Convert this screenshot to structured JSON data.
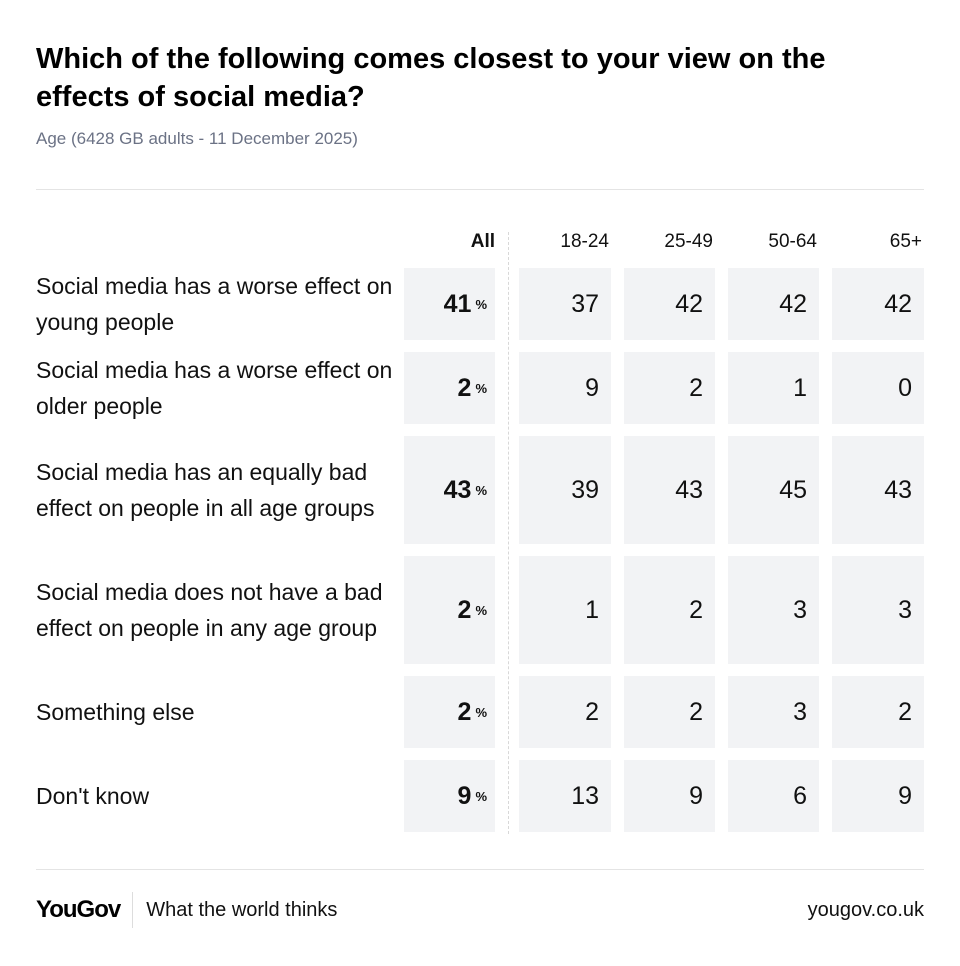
{
  "chart_data": {
    "type": "table",
    "title": "Which of the following comes closest to your view on the effects of social media?",
    "subtitle": "Age (6428 GB adults - 11 December 2025)",
    "columns": [
      "All",
      "18-24",
      "25-49",
      "50-64",
      "65+"
    ],
    "pct_symbol": "%",
    "rows": [
      {
        "label": "Social media has a worse effect on young people",
        "values": [
          41,
          37,
          42,
          42,
          42
        ]
      },
      {
        "label": "Social media has a worse effect on older people",
        "values": [
          2,
          9,
          2,
          1,
          0
        ]
      },
      {
        "label": "Social media has an equally bad effect on people in all age groups",
        "values": [
          43,
          39,
          43,
          45,
          43
        ]
      },
      {
        "label": "Social media does not have a bad effect on people in any age group",
        "values": [
          2,
          1,
          2,
          3,
          3
        ]
      },
      {
        "label": "Something else",
        "values": [
          2,
          2,
          2,
          3,
          2
        ]
      },
      {
        "label": "Don't know",
        "values": [
          9,
          13,
          9,
          6,
          9
        ]
      }
    ]
  },
  "footer": {
    "logo": "YouGov",
    "tagline": "What the world thinks",
    "url": "yougov.co.uk"
  }
}
